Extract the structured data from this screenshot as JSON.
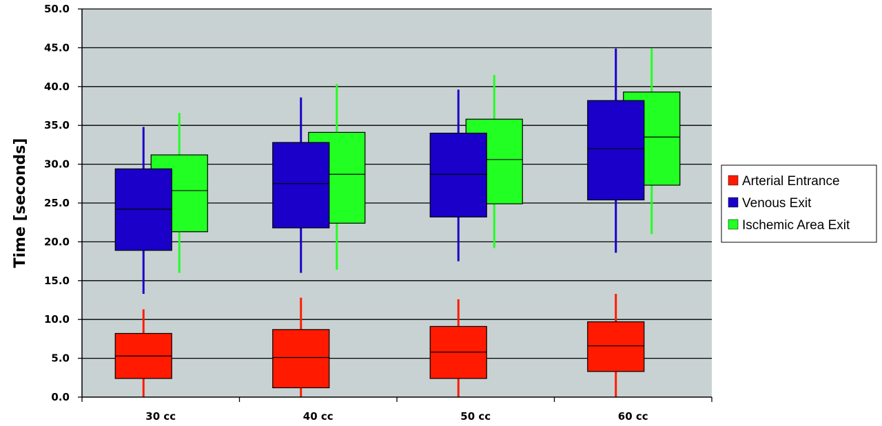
{
  "chart_data": {
    "type": "box",
    "ylabel": "Time [seconds]",
    "xlabel": "",
    "ylim": [
      0,
      50
    ],
    "y_ticks": [
      "0.0",
      "5.0",
      "10.0",
      "15.0",
      "20.0",
      "25.0",
      "30.0",
      "35.0",
      "40.0",
      "45.0",
      "50.0"
    ],
    "grid": true,
    "legend_position": "right",
    "categories": [
      "30 cc",
      "40 cc",
      "50 cc",
      "60 cc"
    ],
    "series": [
      {
        "name": "Arterial Entrance",
        "color": "#ff1a00",
        "boxes": [
          {
            "min": 0.0,
            "q1": 2.4,
            "median": 5.3,
            "q3": 8.2,
            "max": 11.3
          },
          {
            "min": 0.0,
            "q1": 1.2,
            "median": 5.1,
            "q3": 8.7,
            "max": 12.8
          },
          {
            "min": 0.0,
            "q1": 2.4,
            "median": 5.8,
            "q3": 9.1,
            "max": 12.6
          },
          {
            "min": 0.0,
            "q1": 3.3,
            "median": 6.6,
            "q3": 9.7,
            "max": 13.3
          }
        ]
      },
      {
        "name": "Venous Exit",
        "color": "#1a00c8",
        "boxes": [
          {
            "min": 13.3,
            "q1": 18.9,
            "median": 24.2,
            "q3": 29.4,
            "max": 34.8
          },
          {
            "min": 16.0,
            "q1": 21.8,
            "median": 27.5,
            "q3": 32.8,
            "max": 38.6
          },
          {
            "min": 17.5,
            "q1": 23.2,
            "median": 28.7,
            "q3": 34.0,
            "max": 39.6
          },
          {
            "min": 18.6,
            "q1": 25.4,
            "median": 32.0,
            "q3": 38.2,
            "max": 44.9
          }
        ]
      },
      {
        "name": "Ischemic Area Exit",
        "color": "#22ff22",
        "boxes": [
          {
            "min": 16.0,
            "q1": 21.3,
            "median": 26.6,
            "q3": 31.2,
            "max": 36.6
          },
          {
            "min": 16.4,
            "q1": 22.4,
            "median": 28.7,
            "q3": 34.1,
            "max": 40.3
          },
          {
            "min": 19.2,
            "q1": 24.9,
            "median": 30.6,
            "q3": 35.8,
            "max": 41.5
          },
          {
            "min": 21.0,
            "q1": 27.3,
            "median": 33.5,
            "q3": 39.3,
            "max": 44.9
          }
        ]
      }
    ]
  }
}
